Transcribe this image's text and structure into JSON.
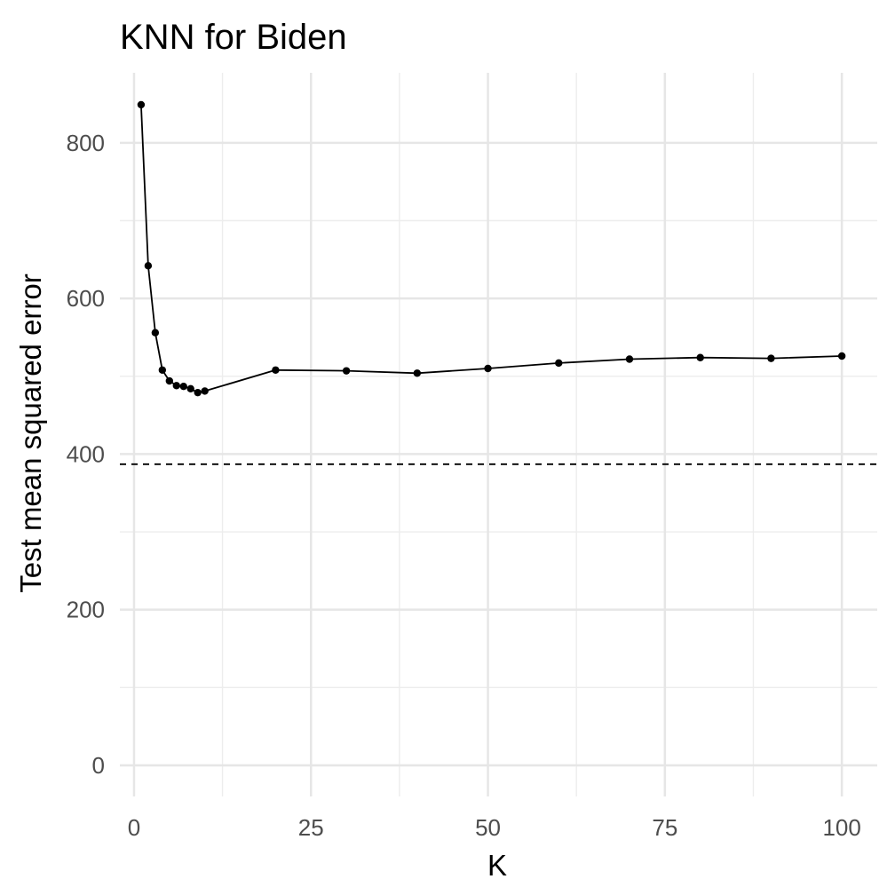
{
  "chart_data": {
    "type": "line",
    "title": "KNN for Biden",
    "xlabel": "K",
    "ylabel": "Test mean squared error",
    "xlim": [
      -2,
      105
    ],
    "ylim": [
      -40,
      890
    ],
    "x_ticks": [
      0,
      25,
      50,
      75,
      100
    ],
    "x_tick_labels": [
      "0",
      "25",
      "50",
      "75",
      "100"
    ],
    "y_ticks": [
      0,
      200,
      400,
      600,
      800
    ],
    "y_tick_labels": [
      "0",
      "200",
      "400",
      "600",
      "800"
    ],
    "grid": true,
    "legend": "none",
    "colors": {
      "line": "#000000",
      "points": "#000000",
      "reference": "#000000"
    },
    "series": [
      {
        "x": [
          1,
          2,
          3,
          4,
          5,
          6,
          7,
          8,
          9,
          10,
          20,
          30,
          40,
          50,
          60,
          70,
          80,
          90,
          100
        ],
        "y": [
          849,
          642,
          556,
          508,
          494,
          488,
          487,
          484,
          479,
          481,
          508,
          507,
          504,
          510,
          517,
          522,
          524,
          523,
          526
        ]
      }
    ],
    "reference_line": {
      "type": "horizontal",
      "y": 387,
      "style": "dashed"
    }
  }
}
